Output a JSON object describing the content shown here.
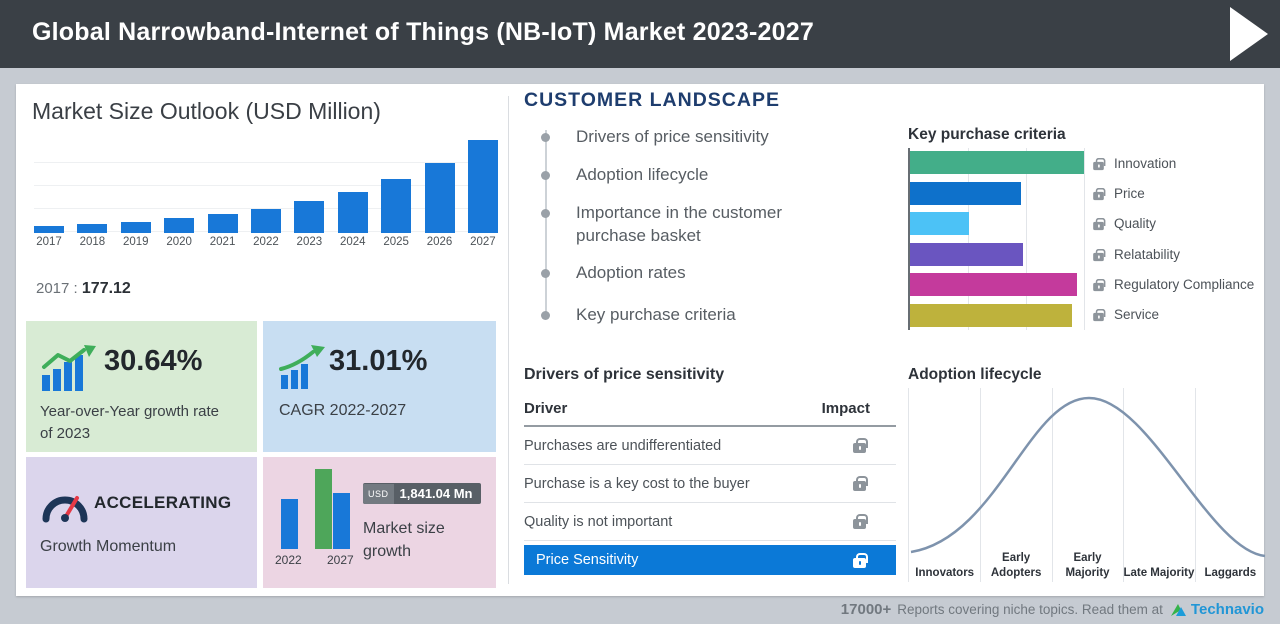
{
  "header": {
    "title": "Global Narrowband-Internet of Things (NB-IoT) Market 2023-2027"
  },
  "market_size": {
    "title": "Market Size Outlook (USD Million)",
    "base_year_label": "2017",
    "base_year_separator": ":",
    "base_year_value": "177.12",
    "yoy_card": {
      "value": "30.64%",
      "label": "Year-over-Year growth rate of 2023"
    },
    "cagr_card": {
      "value": "31.01%",
      "label": "CAGR 2022-2027"
    },
    "momentum_card": {
      "value": "ACCELERATING",
      "label": "Growth Momentum"
    },
    "growth_card": {
      "badge_currency": "USD",
      "badge_value": "1,841.04 Mn",
      "label": "Market size growth",
      "start_year": "2022",
      "end_year": "2027"
    }
  },
  "customer_landscape": {
    "title": "CUSTOMER LANDSCAPE",
    "items": [
      "Drivers of price sensitivity",
      "Adoption lifecycle",
      "Importance in the customer purchase basket",
      "Adoption rates",
      "Key purchase criteria"
    ]
  },
  "price_sensitivity": {
    "title": "Drivers of price sensitivity",
    "columns": [
      "Driver",
      "Impact"
    ],
    "rows": [
      "Purchases are undifferentiated",
      "Purchase is a key cost to the buyer",
      "Quality is not important"
    ],
    "highlight_row": "Price Sensitivity",
    "highlight_color": "#0b79d7"
  },
  "key_purchase_criteria": {
    "title": "Key purchase criteria"
  },
  "adoption_lifecycle": {
    "title": "Adoption lifecycle"
  },
  "footer": {
    "count": "17000+",
    "text": "Reports covering niche topics. Read them at",
    "brand": "Technavio"
  },
  "colors": {
    "header_bg": "#3a4046",
    "bar_blue": "#1878d8",
    "highlight_blue": "#0b79d7",
    "navy_heading": "#1e3d6e"
  },
  "chart_data": [
    {
      "id": "market_size_outlook",
      "type": "bar",
      "title": "Market Size Outlook (USD Million)",
      "categories": [
        "2017",
        "2018",
        "2019",
        "2020",
        "2021",
        "2022",
        "2023",
        "2024",
        "2025",
        "2026",
        "2027"
      ],
      "values": [
        177.12,
        231,
        303,
        396,
        519,
        644,
        842,
        1101,
        1440,
        1883,
        2485
      ],
      "value_note": "2017 labeled 177.12; later years estimated from bar heights, CAGR 31.01% and growth USD 1,841.04 Mn",
      "ylabel": "USD Million",
      "bar_color": "#1878d8",
      "grid": true,
      "legend_position": "none"
    },
    {
      "id": "market_size_growth",
      "type": "bar",
      "categories": [
        "2022",
        "2027"
      ],
      "values": [
        644,
        2485
      ],
      "growth_annotation": "USD 1,841.04 Mn",
      "colors": [
        "#1878d8",
        "#4ea65a",
        "#1878d8"
      ]
    },
    {
      "id": "key_purchase_criteria",
      "type": "bar",
      "orientation": "horizontal",
      "categories": [
        "Innovation",
        "Price",
        "Quality",
        "Relatability",
        "Regulatory Compliance",
        "Service"
      ],
      "values": [
        100,
        64,
        34,
        65,
        96,
        93
      ],
      "value_note": "relative lengths 0-100 estimated from bars (no axis labels shown)",
      "colors": [
        "#43ae89",
        "#0e71cb",
        "#4cc2f6",
        "#6a55c0",
        "#c43a9c",
        "#beb23c"
      ],
      "legend_position": "right",
      "grid": true
    },
    {
      "id": "adoption_lifecycle",
      "type": "area",
      "subtype": "bell-curve",
      "categories": [
        "Innovators",
        "Early Adopters",
        "Early Majority",
        "Late Majority",
        "Laggards"
      ],
      "curve_color": "#7e93ad",
      "grid": true,
      "legend_position": "none"
    }
  ]
}
